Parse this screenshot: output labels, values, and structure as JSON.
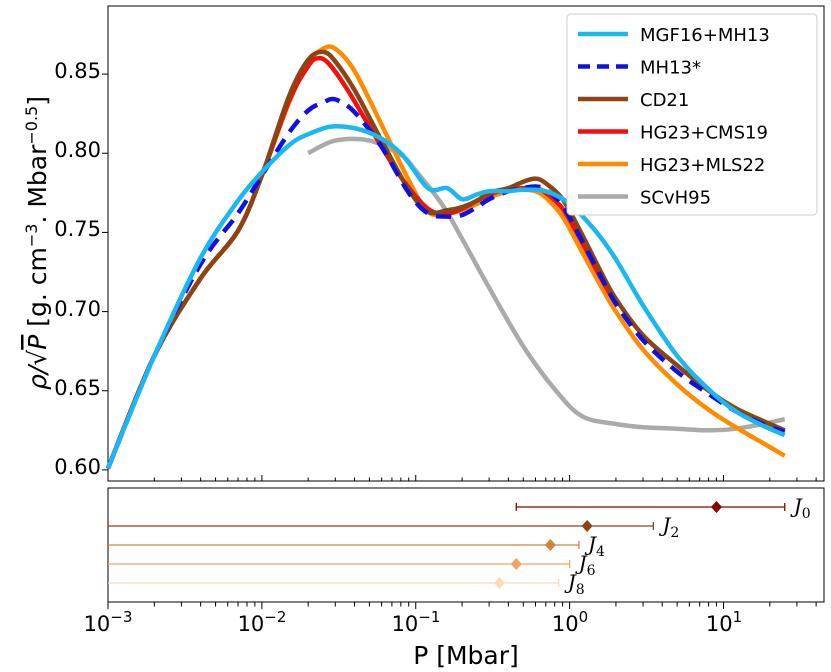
{
  "chart_data": [
    {
      "type": "line",
      "x_scale": "log",
      "xlim": [
        0.001,
        45
      ],
      "ylim": [
        0.593,
        0.893
      ],
      "xlabel": "P [Mbar]",
      "ylabel": "ρ/√P [g. cm⁻³. Mbar⁻⁰·⁵]",
      "ylabel_parts": {
        "a": "ρ/",
        "sqrt": "√",
        "p": "P",
        "b": " [g. cm",
        "exp1": "−3",
        "c": ". Mbar",
        "exp2": "−0.5",
        "d": "]"
      },
      "x_ticks": [
        {
          "label_base": "10",
          "label_exp": "−3",
          "value": 0.001
        },
        {
          "label_base": "10",
          "label_exp": "−2",
          "value": 0.01
        },
        {
          "label_base": "10",
          "label_exp": "−1",
          "value": 0.1
        },
        {
          "label_base": "10",
          "label_exp": "0",
          "value": 1
        },
        {
          "label_base": "10",
          "label_exp": "1",
          "value": 10
        }
      ],
      "y_ticks": [
        "0.60",
        "0.65",
        "0.70",
        "0.75",
        "0.80",
        "0.85"
      ],
      "legend_position": "top-right",
      "series": [
        {
          "name": "MGF16+MH13",
          "color": "#1ab8f0",
          "dash": "solid",
          "x": [
            0.001,
            0.002,
            0.004,
            0.007,
            0.01,
            0.015,
            0.02,
            0.03,
            0.05,
            0.08,
            0.12,
            0.16,
            0.2,
            0.25,
            0.3,
            0.4,
            0.5,
            0.7,
            1.0,
            1.5,
            2,
            3,
            5,
            8,
            12,
            18,
            25
          ],
          "y": [
            0.601,
            0.672,
            0.734,
            0.77,
            0.788,
            0.805,
            0.812,
            0.817,
            0.813,
            0.8,
            0.778,
            0.778,
            0.771,
            0.774,
            0.776,
            0.776,
            0.777,
            0.776,
            0.768,
            0.75,
            0.733,
            0.704,
            0.672,
            0.651,
            0.637,
            0.628,
            0.622
          ]
        },
        {
          "name": "MH13*",
          "color": "#1010e0",
          "dash": "dashed",
          "x": [
            0.001,
            0.002,
            0.004,
            0.007,
            0.01,
            0.015,
            0.02,
            0.025,
            0.03,
            0.04,
            0.06,
            0.09,
            0.12,
            0.16,
            0.2,
            0.25,
            0.3,
            0.4,
            0.5,
            0.6,
            0.7,
            0.9,
            1.2,
            1.6,
            2,
            3,
            5,
            8,
            12,
            18,
            25
          ],
          "y": [
            0.601,
            0.672,
            0.73,
            0.762,
            0.786,
            0.813,
            0.827,
            0.832,
            0.834,
            0.826,
            0.804,
            0.775,
            0.762,
            0.76,
            0.761,
            0.766,
            0.771,
            0.776,
            0.778,
            0.779,
            0.777,
            0.767,
            0.745,
            0.722,
            0.705,
            0.682,
            0.662,
            0.648,
            0.637,
            0.629,
            0.624
          ]
        },
        {
          "name": "CD21",
          "color": "#8b4513",
          "dash": "solid",
          "x": [
            0.001,
            0.002,
            0.004,
            0.007,
            0.01,
            0.015,
            0.02,
            0.025,
            0.03,
            0.04,
            0.06,
            0.09,
            0.12,
            0.16,
            0.2,
            0.25,
            0.3,
            0.4,
            0.5,
            0.6,
            0.7,
            0.9,
            1.2,
            1.6,
            2,
            3,
            5,
            8,
            12,
            18,
            25
          ],
          "y": [
            0.601,
            0.672,
            0.721,
            0.751,
            0.786,
            0.836,
            0.859,
            0.864,
            0.858,
            0.84,
            0.808,
            0.777,
            0.763,
            0.764,
            0.766,
            0.77,
            0.775,
            0.778,
            0.782,
            0.784,
            0.781,
            0.771,
            0.749,
            0.725,
            0.708,
            0.685,
            0.666,
            0.65,
            0.639,
            0.631,
            0.625
          ]
        },
        {
          "name": "HG23+CMS19",
          "color": "#f01010",
          "dash": "solid",
          "x": [
            0.001,
            0.002,
            0.004,
            0.007,
            0.01,
            0.015,
            0.02,
            0.023,
            0.027,
            0.035,
            0.05,
            0.08,
            0.12,
            0.16,
            0.2,
            0.25,
            0.3,
            0.4,
            0.5,
            0.6,
            0.7,
            0.9,
            1.2,
            1.6,
            2
          ],
          "y": [
            0.601,
            0.672,
            0.721,
            0.751,
            0.786,
            0.833,
            0.855,
            0.86,
            0.857,
            0.842,
            0.817,
            0.785,
            0.765,
            0.762,
            0.765,
            0.77,
            0.774,
            0.777,
            0.778,
            0.778,
            0.775,
            0.765,
            0.744,
            0.721,
            0.705
          ]
        },
        {
          "name": "HG23+MLS22",
          "color": "#ff8c00",
          "dash": "solid",
          "x": [
            0.001,
            0.002,
            0.004,
            0.007,
            0.01,
            0.015,
            0.02,
            0.025,
            0.03,
            0.04,
            0.06,
            0.09,
            0.12,
            0.16,
            0.2,
            0.25,
            0.3,
            0.4,
            0.5,
            0.6,
            0.7,
            0.9,
            1.2,
            1.6,
            2,
            3,
            5,
            8,
            12,
            18,
            25
          ],
          "y": [
            0.601,
            0.672,
            0.721,
            0.751,
            0.786,
            0.832,
            0.857,
            0.866,
            0.866,
            0.852,
            0.818,
            0.783,
            0.763,
            0.762,
            0.764,
            0.768,
            0.772,
            0.776,
            0.777,
            0.776,
            0.772,
            0.76,
            0.738,
            0.716,
            0.7,
            0.676,
            0.654,
            0.638,
            0.627,
            0.617,
            0.609
          ]
        },
        {
          "name": "SCvH95",
          "color": "#aaaaaa",
          "dash": "solid",
          "x": [
            0.02,
            0.03,
            0.05,
            0.08,
            0.1,
            0.15,
            0.2,
            0.3,
            0.5,
            0.8,
            1.2,
            2,
            3,
            5,
            8,
            12,
            18,
            25
          ],
          "y": [
            0.8,
            0.808,
            0.808,
            0.799,
            0.789,
            0.767,
            0.746,
            0.715,
            0.678,
            0.651,
            0.634,
            0.629,
            0.627,
            0.626,
            0.625,
            0.626,
            0.629,
            0.632
          ]
        }
      ]
    },
    {
      "type": "scatter",
      "x_scale": "log",
      "title": "",
      "points": [
        {
          "label": "J",
          "sub": "0",
          "x": 9.0,
          "xerr_low": 0.45,
          "xerr_high": 25,
          "color": "#8b0000"
        },
        {
          "label": "J",
          "sub": "2",
          "x": 1.3,
          "xerr_low": 0.001,
          "xerr_high": 3.5,
          "color": "#8b4513"
        },
        {
          "label": "J",
          "sub": "4",
          "x": 0.75,
          "xerr_low": 0.001,
          "xerr_high": 1.15,
          "color": "#cd853f"
        },
        {
          "label": "J",
          "sub": "6",
          "x": 0.45,
          "xerr_low": 0.001,
          "xerr_high": 1.0,
          "color": "#f4a460"
        },
        {
          "label": "J",
          "sub": "8",
          "x": 0.35,
          "xerr_low": 0.001,
          "xerr_high": 0.85,
          "color": "#ffdab9"
        }
      ]
    }
  ]
}
